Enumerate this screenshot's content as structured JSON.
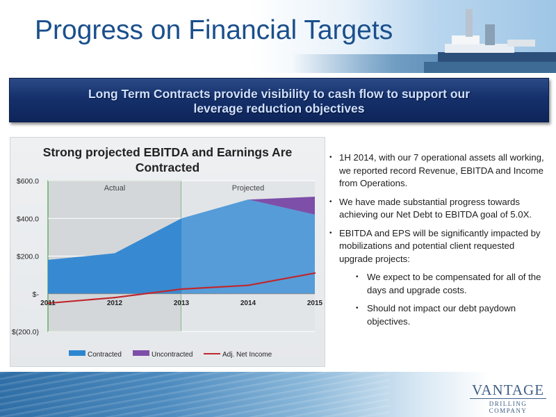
{
  "title": "Progress on Financial Targets",
  "banner": {
    "line1": "Long Term Contracts provide visibility to cash flow to support our",
    "line2": "leverage reduction objectives"
  },
  "chart_data": {
    "type": "area",
    "title": "Strong projected EBITDA and Earnings Are Contracted",
    "x": [
      "2011",
      "2012",
      "2013",
      "2014",
      "2015"
    ],
    "yticks": [
      "$600.0",
      "$400.0",
      "$200.0",
      "$-",
      "$(200.0)"
    ],
    "ylim": [
      -200,
      600
    ],
    "grid": true,
    "legend_position": "bottom",
    "regions": [
      {
        "label": "Actual",
        "from": "2011",
        "to": "2013"
      },
      {
        "label": "Projected",
        "from": "2013",
        "to": "2015"
      }
    ],
    "series": [
      {
        "name": "Contracted",
        "kind": "area",
        "color": "#2e86d1",
        "values": [
          180,
          215,
          400,
          500,
          420
        ]
      },
      {
        "name": "Uncontracted",
        "kind": "stacked-area",
        "color": "#7d4fa8",
        "values": [
          0,
          0,
          0,
          0,
          95
        ]
      },
      {
        "name": "Adj. Net Income",
        "kind": "line",
        "color": "#c0272d",
        "values": [
          -50,
          -20,
          25,
          45,
          110
        ]
      }
    ]
  },
  "bullets": [
    {
      "text": "1H 2014, with our 7 operational assets all working, we reported record Revenue, EBITDA and Income from Operations.",
      "subs": []
    },
    {
      "text": "We have made substantial progress towards achieving our Net Debt to EBITDA goal of 5.0X.",
      "subs": []
    },
    {
      "text": "EBITDA and EPS will be significantly impacted by mobilizations and potential client requested upgrade projects:",
      "subs": [
        "We expect to be compensated for all of the days and upgrade costs.",
        "Should not impact our debt paydown objectives."
      ]
    }
  ],
  "bullet_glyph": "•",
  "logo": {
    "main": "VANTAGE",
    "sub": "DRILLING COMPANY"
  }
}
